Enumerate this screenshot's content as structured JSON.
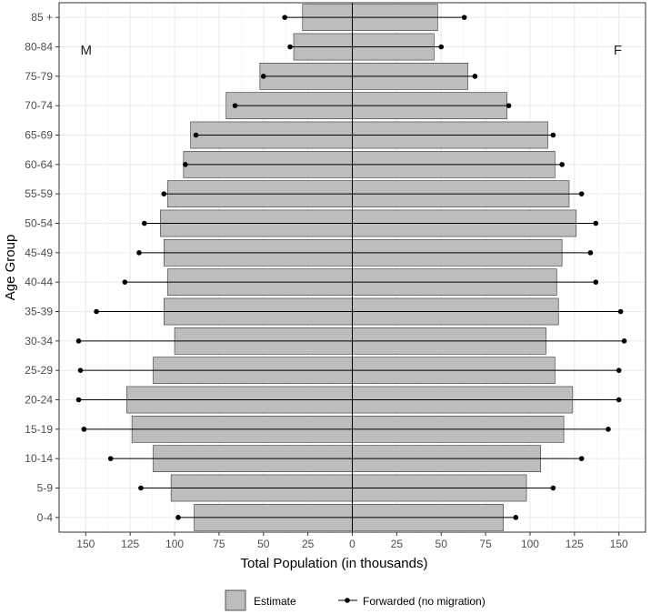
{
  "chart_data": {
    "type": "bar",
    "orientation": "horizontal-population-pyramid",
    "categories": [
      "0-4",
      "5-9",
      "10-14",
      "15-19",
      "20-24",
      "25-29",
      "30-34",
      "35-39",
      "40-44",
      "45-49",
      "50-54",
      "55-59",
      "60-64",
      "65-69",
      "70-74",
      "75-79",
      "80-84",
      "85 +"
    ],
    "series": [
      {
        "name": "Estimate",
        "male": [
          89,
          102,
          112,
          124,
          127,
          112,
          100,
          106,
          104,
          106,
          108,
          104,
          95,
          91,
          71,
          52,
          33,
          28
        ],
        "female": [
          85,
          98,
          106,
          119,
          124,
          114,
          109,
          116,
          115,
          118,
          126,
          122,
          114,
          110,
          87,
          65,
          46,
          48
        ]
      },
      {
        "name": "Forwarded (no migration)",
        "male": [
          98,
          119,
          136,
          151,
          154,
          153,
          154,
          144,
          128,
          120,
          117,
          106,
          94,
          88,
          66,
          50,
          35,
          38
        ],
        "female": [
          92,
          113,
          129,
          144,
          150,
          150,
          153,
          151,
          137,
          134,
          137,
          129,
          118,
          113,
          88,
          69,
          50,
          63
        ]
      }
    ],
    "xlabel": "Total Population (in thousands)",
    "ylabel": "Age Group",
    "xlim": [
      -165,
      165
    ],
    "xticks": [
      -150,
      -125,
      -100,
      -75,
      -50,
      -25,
      0,
      25,
      50,
      75,
      100,
      125,
      150
    ],
    "xtick_labels": [
      "150",
      "125",
      "100",
      "75",
      "50",
      "25",
      "0",
      "25",
      "50",
      "75",
      "100",
      "125",
      "150"
    ],
    "annotations": {
      "male": "M",
      "female": "F"
    },
    "grid": true,
    "legend_position": "bottom",
    "colors": {
      "bar_fill": "#bdbdbd",
      "bar_stroke": "#333333",
      "line": "#000000",
      "grid": "#ebebeb",
      "panel_border": "#333333"
    }
  }
}
